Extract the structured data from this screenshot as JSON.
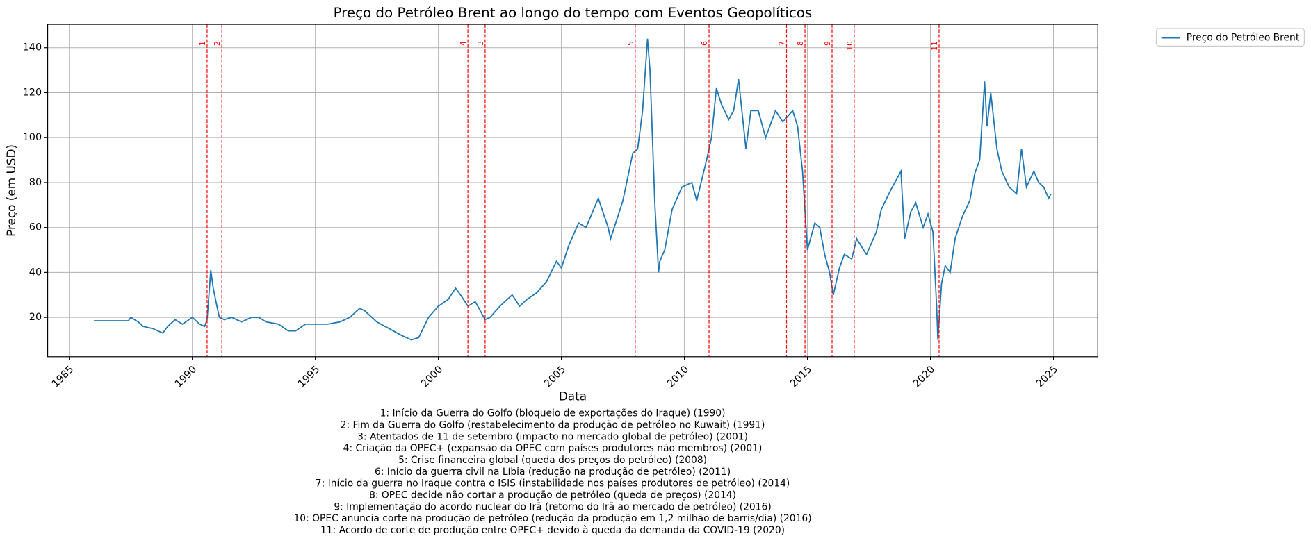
{
  "chart_data": {
    "type": "line",
    "title": "Preço do Petróleo Brent ao longo do tempo com Eventos Geopolíticos",
    "x_label": "Data",
    "y_label": "Preço (em USD)",
    "xlim": [
      1984.12,
      2026.8
    ],
    "ylim": [
      2.5,
      150.4
    ],
    "xticks": [
      1985,
      1990,
      1995,
      2000,
      2005,
      2010,
      2015,
      2020,
      2025
    ],
    "yticks": [
      20,
      40,
      60,
      80,
      100,
      120,
      140
    ],
    "grid": true,
    "legend": "outside upper right",
    "x": [
      1986.0,
      1987.4,
      1987.5,
      1987.8,
      1988.0,
      1988.4,
      1988.8,
      1989.0,
      1989.3,
      1989.6,
      1990.0,
      1990.3,
      1990.5,
      1990.6,
      1990.75,
      1990.85,
      1991.0,
      1991.1,
      1991.3,
      1991.6,
      1992.0,
      1992.4,
      1992.7,
      1993.0,
      1993.5,
      1993.9,
      1994.2,
      1994.6,
      1995.0,
      1995.5,
      1996.0,
      1996.4,
      1996.8,
      1997.0,
      1997.5,
      1998.0,
      1998.5,
      1998.9,
      1999.2,
      1999.6,
      2000.0,
      2000.4,
      2000.7,
      2000.9,
      2001.2,
      2001.5,
      2001.9,
      2002.1,
      2002.5,
      2003.0,
      2003.3,
      2003.6,
      2004.0,
      2004.4,
      2004.8,
      2005.0,
      2005.3,
      2005.7,
      2006.0,
      2006.5,
      2006.9,
      2007.0,
      2007.5,
      2007.9,
      2008.1,
      2008.3,
      2008.5,
      2008.6,
      2008.8,
      2008.95,
      2009.0,
      2009.2,
      2009.5,
      2009.9,
      2010.3,
      2010.5,
      2010.9,
      2011.1,
      2011.3,
      2011.5,
      2011.8,
      2012.0,
      2012.2,
      2012.5,
      2012.7,
      2013.0,
      2013.3,
      2013.7,
      2014.0,
      2014.4,
      2014.6,
      2014.8,
      2015.0,
      2015.3,
      2015.5,
      2015.7,
      2015.9,
      2016.05,
      2016.3,
      2016.5,
      2016.8,
      2017.0,
      2017.4,
      2017.8,
      2018.0,
      2018.4,
      2018.8,
      2018.95,
      2019.2,
      2019.4,
      2019.7,
      2019.9,
      2020.1,
      2020.25,
      2020.3,
      2020.45,
      2020.6,
      2020.8,
      2021.0,
      2021.3,
      2021.6,
      2021.8,
      2022.0,
      2022.2,
      2022.3,
      2022.45,
      2022.7,
      2022.9,
      2023.2,
      2023.5,
      2023.7,
      2023.9,
      2024.2,
      2024.4,
      2024.6,
      2024.8,
      2024.9
    ],
    "series": [
      {
        "name": "Preço do Petróleo Brent",
        "color": "#1f77b4",
        "values": [
          18.5,
          18.5,
          20,
          18,
          16,
          15,
          13,
          16,
          19,
          17,
          20,
          17,
          16,
          19,
          41,
          33,
          25,
          20,
          19,
          20,
          18,
          20,
          20,
          18,
          17,
          14,
          14,
          17,
          17,
          17,
          18,
          20,
          24,
          23,
          18,
          15,
          12,
          10,
          11,
          20,
          25,
          28,
          33,
          30,
          25,
          27,
          19,
          20,
          25,
          30,
          25,
          28,
          31,
          36,
          45,
          42,
          52,
          62,
          60,
          73,
          60,
          55,
          72,
          93,
          95,
          112,
          144,
          130,
          70,
          40,
          45,
          50,
          68,
          78,
          80,
          72,
          90,
          100,
          122,
          115,
          108,
          112,
          126,
          95,
          112,
          112,
          100,
          112,
          107,
          112,
          105,
          85,
          50,
          62,
          60,
          48,
          40,
          30,
          42,
          48,
          46,
          55,
          48,
          58,
          68,
          77,
          85,
          55,
          67,
          71,
          60,
          66,
          58,
          25,
          10,
          35,
          43,
          40,
          55,
          65,
          72,
          84,
          90,
          125,
          105,
          120,
          95,
          85,
          78,
          75,
          95,
          78,
          85,
          80,
          78,
          73,
          75
        ]
      }
    ],
    "events": [
      {
        "label": "1",
        "x": 1990.6,
        "text": "1: Início da Guerra do Golfo (bloqueio de exportações do Iraque) (1990)"
      },
      {
        "label": "2",
        "x": 1991.2,
        "text": "2: Fim da Guerra do Golfo (restabelecimento da produção de petróleo no Kuwait) (1991)"
      },
      {
        "label": "3",
        "x": 2001.9,
        "text": "3: Atentados de 11 de setembro (impacto no mercado global de petróleo) (2001)"
      },
      {
        "label": "4",
        "x": 2001.2,
        "text": "4: Criação da OPEC+ (expansão da OPEC com países produtores não membros) (2001)"
      },
      {
        "label": "5",
        "x": 2008.0,
        "text": "5: Crise financeira global (queda dos preços do petróleo) (2008)"
      },
      {
        "label": "6",
        "x": 2011.0,
        "text": "6: Início da guerra civil na Líbia (redução na produção de petróleo) (2011)"
      },
      {
        "label": "7",
        "x": 2014.15,
        "text": "7: Início da guerra no Iraque contra o ISIS (instabilidade nos países produtores de petróleo) (2014)"
      },
      {
        "label": "8",
        "x": 2014.9,
        "text": "8: OPEC decide não cortar a produção de petróleo (queda de preços) (2014)"
      },
      {
        "label": "9",
        "x": 2016.0,
        "text": "9: Implementação do acordo nuclear do Irã (retorno do Irã ao mercado de petróleo) (2016)"
      },
      {
        "label": "10",
        "x": 2016.9,
        "text": "10: OPEC anuncia corte na produção de petróleo (redução da produção em 1,2 milhão de barris/dia) (2016)"
      },
      {
        "label": "11",
        "x": 2020.35,
        "text": "11: Acordo de corte de produção entre OPEC+ devido à queda da demanda da COVID-19 (2020)"
      }
    ],
    "event_color": "#ff0000"
  }
}
